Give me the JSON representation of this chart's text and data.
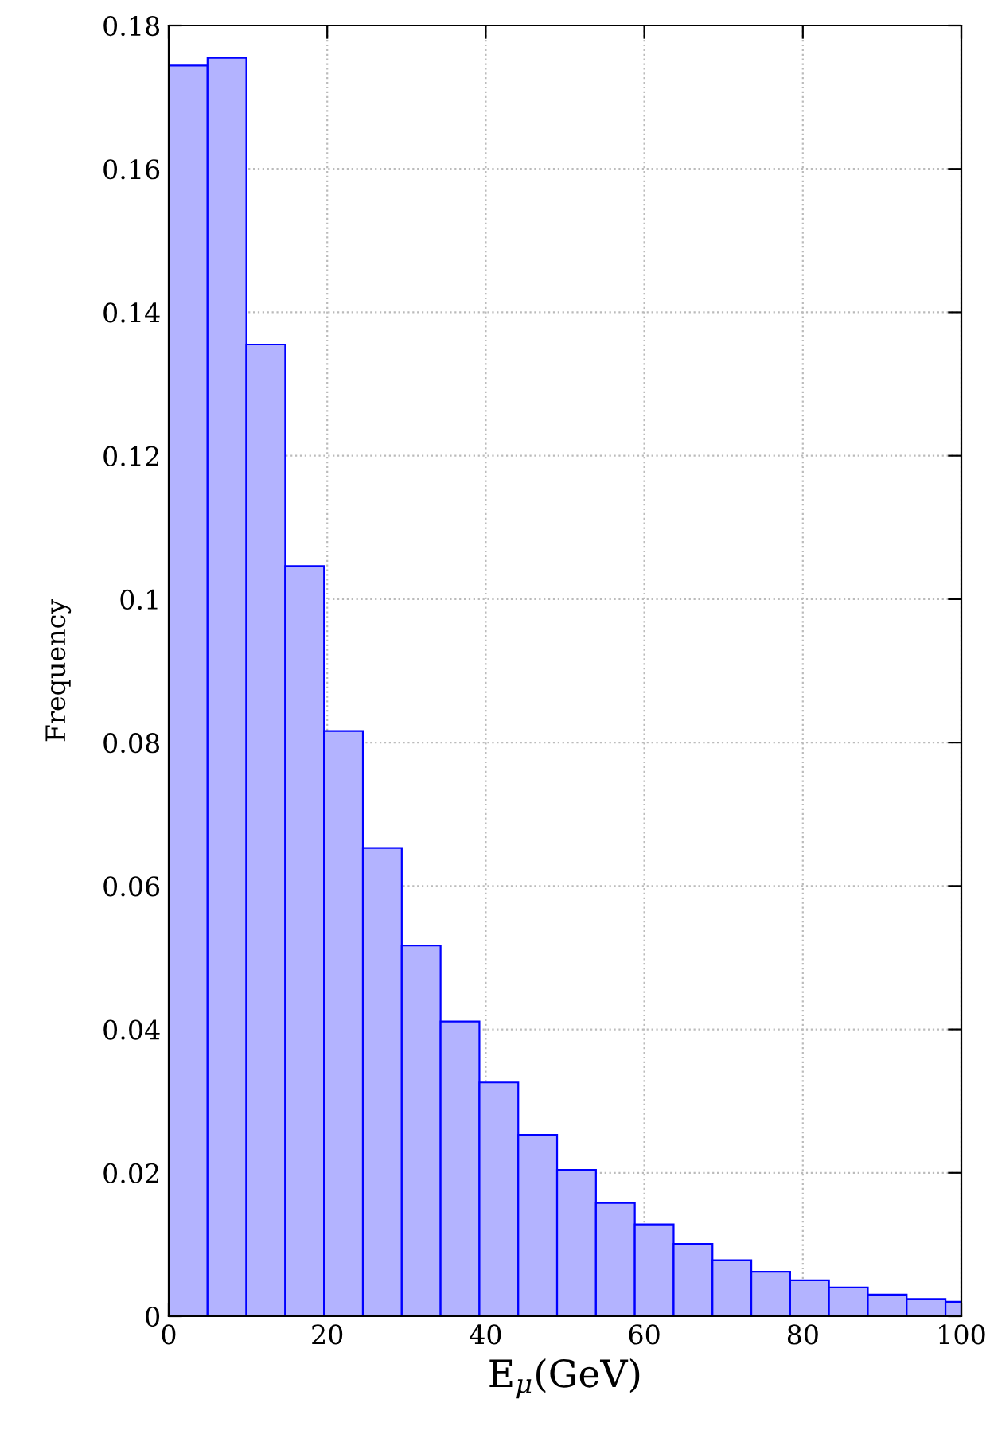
{
  "chart_data": {
    "type": "histogram",
    "xlabel": "E$_{μ}$(GeV)",
    "ylabel": "Frequency",
    "bins": [
      0,
      4.9,
      9.8,
      14.7,
      19.6,
      24.5,
      29.4,
      34.3,
      39.2,
      44.1,
      49,
      53.9,
      58.8,
      63.7,
      68.6,
      73.5,
      78.4,
      83.3,
      88.2,
      93.1,
      98,
      100
    ],
    "values": [
      0.1744,
      0.1755,
      0.1355,
      0.1046,
      0.0816,
      0.0653,
      0.0517,
      0.0411,
      0.0326,
      0.0253,
      0.0204,
      0.0158,
      0.0128,
      0.0101,
      0.0078,
      0.0062,
      0.005,
      0.004,
      0.003,
      0.0024,
      0.002
    ],
    "color": "#b3b3ff",
    "xlim": [
      0,
      100
    ],
    "xticks": [
      0,
      20,
      40,
      60,
      80,
      100
    ],
    "ylim": [
      0,
      0.18
    ],
    "yticks": [
      0,
      0.02,
      0.04,
      0.06,
      0.08,
      0.1,
      0.12,
      0.14,
      0.16,
      0.18
    ],
    "grid": true,
    "legend": false
  }
}
